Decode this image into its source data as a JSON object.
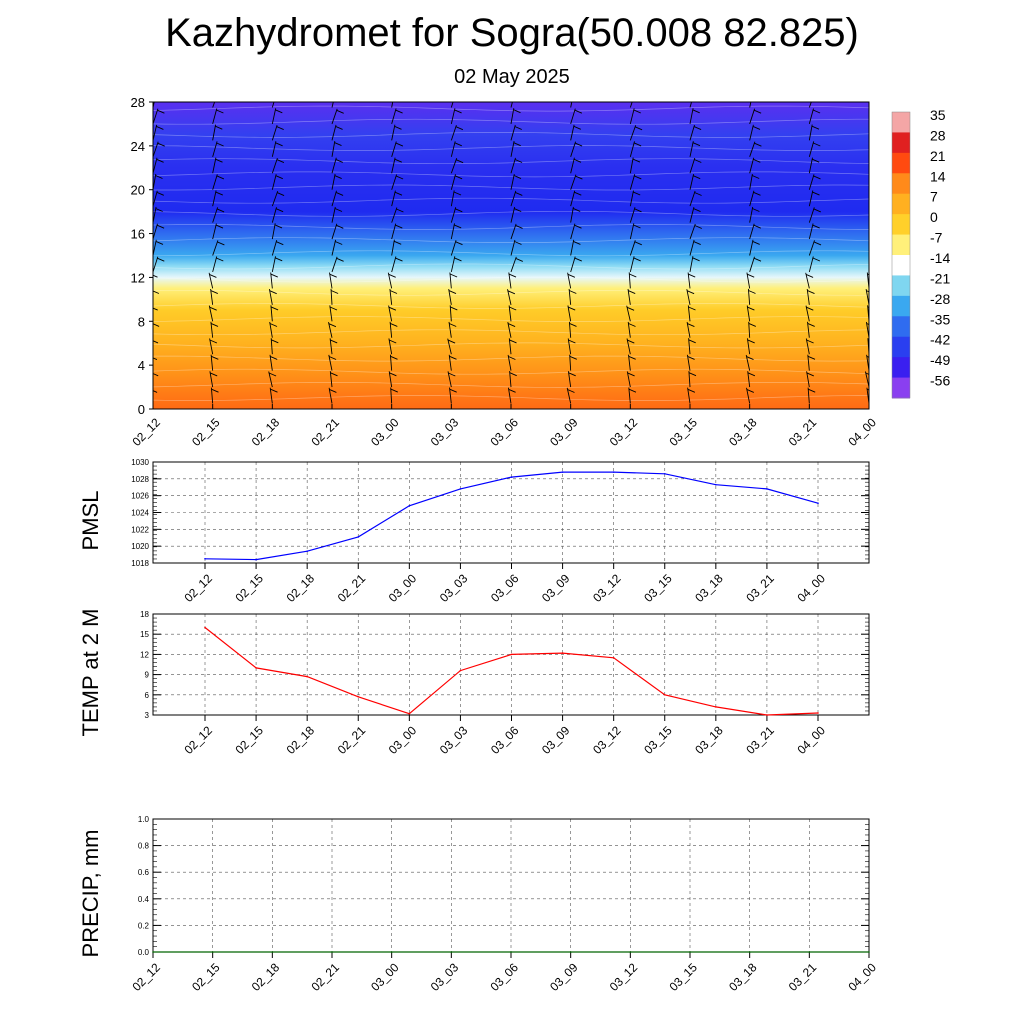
{
  "title": "Kazhydromet for Sogra(50.008 82.825)",
  "date": "02 May 2025",
  "time_labels": [
    "02_12",
    "02_15",
    "02_18",
    "02_21",
    "03_00",
    "03_03",
    "03_06",
    "03_09",
    "03_12",
    "03_15",
    "03_18",
    "03_21",
    "04_00"
  ],
  "chart_data": [
    {
      "type": "heatmap",
      "name": "temperature-wind-profile",
      "x": [
        "02_12",
        "02_15",
        "02_18",
        "02_21",
        "03_00",
        "03_03",
        "03_06",
        "03_09",
        "03_12",
        "03_15",
        "03_18",
        "03_21",
        "04_00"
      ],
      "ylim": [
        0,
        28
      ],
      "yticks": [
        0,
        4,
        8,
        12,
        16,
        20,
        24,
        28
      ],
      "colorbar": {
        "labels": [
          "35",
          "28",
          "21",
          "14",
          "7",
          "0",
          "-7",
          "-14",
          "-21",
          "-28",
          "-35",
          "-42",
          "-49",
          "-56"
        ],
        "colors": [
          "#f4a6a6",
          "#e02020",
          "#ff4a10",
          "#ff8a1a",
          "#ffb020",
          "#ffd02a",
          "#fff07a",
          "#ffffff",
          "#7fd6f0",
          "#3aa8f0",
          "#2f6cf0",
          "#2a3ff0",
          "#3a1ff0",
          "#8a3ff0"
        ],
        "min": -56,
        "max": 35
      },
      "layers": [
        {
          "level": 0,
          "value": 14,
          "color": "#ff6a14"
        },
        {
          "level": 3,
          "value": 9,
          "color": "#ff8f18"
        },
        {
          "level": 6,
          "value": 4,
          "color": "#ffb21f"
        },
        {
          "level": 9,
          "value": 0,
          "color": "#ffcc28"
        },
        {
          "level": 11,
          "value": -7,
          "color": "#fff07a"
        },
        {
          "level": 12,
          "value": -14,
          "color": "#e6f7fb"
        },
        {
          "level": 13,
          "value": -21,
          "color": "#8fdcf4"
        },
        {
          "level": 14,
          "value": -28,
          "color": "#3aa8f0"
        },
        {
          "level": 16,
          "value": -35,
          "color": "#2f6cf0"
        },
        {
          "level": 18,
          "value": -49,
          "color": "#1f2bf0"
        },
        {
          "level": 22,
          "value": -49,
          "color": "#2a2ff0"
        },
        {
          "level": 25,
          "value": -42,
          "color": "#3340f0"
        },
        {
          "level": 28,
          "value": -56,
          "color": "#5a2ff0"
        }
      ]
    },
    {
      "type": "line",
      "name": "pmsl",
      "ylabel": "PMSL",
      "x": [
        "02_12",
        "02_15",
        "02_18",
        "02_21",
        "03_00",
        "03_03",
        "03_06",
        "03_09",
        "03_12",
        "03_15",
        "03_18",
        "03_21",
        "04_00"
      ],
      "values": [
        1018.5,
        1018.4,
        1019.4,
        1021.1,
        1024.8,
        1026.8,
        1028.2,
        1028.8,
        1028.8,
        1028.6,
        1027.3,
        1026.8,
        1025.1
      ],
      "ylim": [
        1018,
        1030
      ],
      "yticks": [
        1018,
        1020,
        1022,
        1024,
        1026,
        1028,
        1030
      ],
      "color": "#0000ff"
    },
    {
      "type": "line",
      "name": "temp-2m",
      "ylabel": "TEMP at 2 M",
      "x": [
        "02_12",
        "02_15",
        "02_18",
        "02_21",
        "03_00",
        "03_03",
        "03_06",
        "03_09",
        "03_12",
        "03_15",
        "03_18",
        "03_21",
        "04_00"
      ],
      "values": [
        16.0,
        10.0,
        8.7,
        5.7,
        3.2,
        9.6,
        12.0,
        12.2,
        11.5,
        6.0,
        4.2,
        3.0,
        3.3
      ],
      "ylim": [
        3,
        18
      ],
      "yticks": [
        3,
        6,
        9,
        12,
        15,
        18
      ],
      "color": "#ff0000"
    },
    {
      "type": "line",
      "name": "precip",
      "ylabel": "PRECIP, mm",
      "x": [
        "02_12",
        "02_15",
        "02_18",
        "02_21",
        "03_00",
        "03_03",
        "03_06",
        "03_09",
        "03_12",
        "03_15",
        "03_18",
        "03_21",
        "04_00"
      ],
      "values": [
        0,
        0,
        0,
        0,
        0,
        0,
        0,
        0,
        0,
        0,
        0,
        0,
        0
      ],
      "ylim": [
        0,
        1
      ],
      "yticks": [
        "0.0",
        "0.2",
        "0.4",
        "0.6",
        "0.8",
        "1.0"
      ],
      "color": "#006400"
    }
  ]
}
